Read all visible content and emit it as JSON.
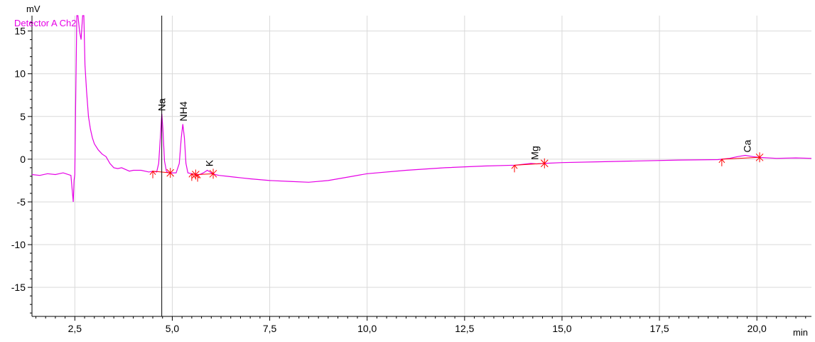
{
  "chart_data": {
    "type": "line",
    "title": "",
    "xlabel": "min",
    "ylabel": "mV",
    "xlim": [
      1.4,
      21.4
    ],
    "ylim": [
      -18.4,
      16.8
    ],
    "grid": true,
    "legend_position": "top-left",
    "x_ticks": [
      "2,5",
      "5,0",
      "7,5",
      "10,0",
      "12,5",
      "15,0",
      "17,5",
      "20,0"
    ],
    "x_tick_values": [
      2.5,
      5.0,
      7.5,
      10.0,
      12.5,
      15.0,
      17.5,
      20.0
    ],
    "y_ticks": [
      "15",
      "10",
      "5",
      "0",
      "-5",
      "-10",
      "-15"
    ],
    "y_tick_values": [
      15,
      10,
      5,
      0,
      -5,
      -10,
      -15
    ],
    "cursor_x": 4.73,
    "series": [
      {
        "name": "Detector A Ch2",
        "color": "#e600e6",
        "x": [
          1.4,
          1.6,
          1.8,
          2.0,
          2.2,
          2.4,
          2.43,
          2.46,
          2.48,
          2.5,
          2.52,
          2.55,
          2.58,
          2.62,
          2.66,
          2.7,
          2.73,
          2.76,
          2.8,
          2.85,
          2.9,
          2.95,
          3.0,
          3.1,
          3.2,
          3.3,
          3.4,
          3.5,
          3.6,
          3.7,
          3.8,
          3.9,
          4.0,
          4.2,
          4.4,
          4.5,
          4.6,
          4.65,
          4.7,
          4.73,
          4.76,
          4.8,
          4.85,
          4.9,
          5.0,
          5.1,
          5.18,
          5.23,
          5.27,
          5.31,
          5.35,
          5.4,
          5.5,
          5.6,
          5.7,
          5.8,
          5.9,
          6.0,
          6.1,
          6.2,
          6.4,
          6.6,
          6.8,
          7.0,
          7.5,
          8.0,
          8.5,
          9.0,
          9.5,
          10.0,
          11.0,
          12.0,
          13.0,
          13.8,
          14.0,
          14.2,
          14.35,
          14.5,
          15.0,
          16.0,
          17.0,
          18.0,
          19.0,
          19.3,
          19.5,
          19.7,
          19.9,
          20.1,
          20.5,
          21.0,
          21.4
        ],
        "y": [
          -1.8,
          -1.9,
          -1.7,
          -1.8,
          -1.6,
          -1.9,
          -3.5,
          -5.0,
          -2.5,
          -1.8,
          6.0,
          16.8,
          16.8,
          15.0,
          14.0,
          16.8,
          16.8,
          11.0,
          8.0,
          5.0,
          3.5,
          2.5,
          1.8,
          1.1,
          0.6,
          0.3,
          -0.5,
          -1.0,
          -1.1,
          -1.0,
          -1.2,
          -1.4,
          -1.3,
          -1.3,
          -1.5,
          -1.4,
          -1.5,
          -0.5,
          3.0,
          5.3,
          3.5,
          -0.2,
          -1.4,
          -1.6,
          -1.6,
          -1.6,
          -0.5,
          2.5,
          4.1,
          2.5,
          -0.5,
          -1.6,
          -1.7,
          -1.8,
          -1.8,
          -1.6,
          -1.3,
          -1.6,
          -1.8,
          -1.9,
          -2.0,
          -2.1,
          -2.2,
          -2.3,
          -2.5,
          -2.6,
          -2.7,
          -2.5,
          -2.1,
          -1.7,
          -1.3,
          -1.0,
          -0.8,
          -0.7,
          -0.6,
          -0.5,
          -0.55,
          -0.5,
          -0.4,
          -0.3,
          -0.2,
          -0.1,
          -0.05,
          0.1,
          0.3,
          0.45,
          0.3,
          0.2,
          0.1,
          0.15,
          0.1
        ]
      }
    ],
    "peaks": [
      {
        "label": "Na",
        "x": 4.73,
        "y": 5.3,
        "start_x": 4.5,
        "end_x": 4.95
      },
      {
        "label": "NH4",
        "x": 5.28,
        "y": 4.1,
        "start_x": 5.5,
        "end_x": 5.6
      },
      {
        "label": "K",
        "x": 5.95,
        "y": -1.2,
        "start_x": 5.65,
        "end_x": 6.05
      },
      {
        "label": "Mg",
        "x": 14.3,
        "y": -0.4,
        "start_x": 13.78,
        "end_x": 14.55
      },
      {
        "label": "Ca",
        "x": 19.75,
        "y": 0.45,
        "start_x": 19.1,
        "end_x": 20.07
      }
    ]
  }
}
